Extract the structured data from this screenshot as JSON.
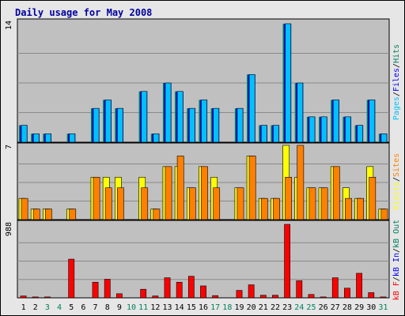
{
  "chart_data": {
    "type": "bar",
    "title": "Daily usage for May 2008",
    "x": [
      "1",
      "2",
      "3",
      "4",
      "5",
      "6",
      "7",
      "8",
      "9",
      "10",
      "11",
      "12",
      "13",
      "14",
      "15",
      "16",
      "17",
      "18",
      "19",
      "20",
      "21",
      "22",
      "23",
      "24",
      "25",
      "26",
      "27",
      "28",
      "29",
      "30",
      "31"
    ],
    "weekend_days": [
      "3",
      "4",
      "10",
      "11",
      "17",
      "18",
      "24",
      "25",
      "31"
    ],
    "panels": [
      {
        "id": "pages-files-hits",
        "max_label": "14",
        "ylim": [
          0,
          14
        ],
        "series": [
          {
            "name": "Hits",
            "color": "#00805c",
            "values": [
              2,
              1,
              1,
              0,
              1,
              0,
              4,
              5,
              4,
              0,
              6,
              1,
              7,
              6,
              4,
              5,
              4,
              0,
              4,
              8,
              2,
              2,
              14,
              7,
              3,
              3,
              5,
              3,
              2,
              5,
              1
            ]
          },
          {
            "name": "Files",
            "color": "#0000ff",
            "values": [
              2,
              1,
              1,
              0,
              1,
              0,
              4,
              5,
              4,
              0,
              6,
              1,
              7,
              6,
              4,
              5,
              4,
              0,
              4,
              8,
              2,
              2,
              14,
              7,
              3,
              3,
              5,
              3,
              2,
              5,
              1
            ]
          },
          {
            "name": "Pages",
            "color": "#00c0ff",
            "values": [
              2,
              1,
              1,
              0,
              1,
              0,
              4,
              5,
              4,
              0,
              6,
              1,
              7,
              6,
              4,
              5,
              4,
              0,
              4,
              8,
              2,
              2,
              14,
              7,
              3,
              3,
              5,
              3,
              2,
              5,
              1
            ]
          }
        ],
        "legend": [
          "Pages",
          "Files",
          "Hits"
        ]
      },
      {
        "id": "visits-sites",
        "max_label": "7",
        "ylim": [
          0,
          7
        ],
        "series": [
          {
            "name": "Visits",
            "color": "#ffff00",
            "values": [
              2,
              1,
              1,
              0,
              1,
              0,
              4,
              4,
              4,
              0,
              4,
              1,
              5,
              5,
              3,
              5,
              4,
              0,
              3,
              6,
              2,
              2,
              7,
              4,
              3,
              3,
              5,
              3,
              2,
              5,
              1
            ]
          },
          {
            "name": "Sites",
            "color": "#ff8000",
            "values": [
              2,
              1,
              1,
              0,
              1,
              0,
              4,
              3,
              3,
              0,
              3,
              1,
              5,
              6,
              3,
              5,
              3,
              0,
              3,
              6,
              2,
              2,
              4,
              7,
              3,
              3,
              5,
              2,
              2,
              4,
              1
            ]
          }
        ],
        "legend": [
          "Visits",
          "Sites"
        ]
      },
      {
        "id": "kbytes",
        "max_label": "988",
        "ylim": [
          0,
          988
        ],
        "series": [
          {
            "name": "kB F",
            "color": "#ff0000",
            "values": [
              25,
              12,
              12,
              0,
              520,
              0,
              210,
              250,
              55,
              0,
              115,
              25,
              270,
              210,
              290,
              160,
              30,
              0,
              100,
              175,
              35,
              35,
              988,
              230,
              45,
              12,
              270,
              130,
              330,
              70,
              12
            ]
          }
        ],
        "legend": [
          "kB F",
          "kB In",
          "kB Out"
        ]
      }
    ],
    "colors": {
      "pages": "#00c0ff",
      "files": "#0000ff",
      "hits": "#00805c",
      "visits": "#ffff00",
      "sites": "#ff8000",
      "kbf": "#ff0000",
      "kbin": "#0000ff",
      "kbout": "#00805c",
      "plot_bg": "#c0c0c0",
      "frame_bg": "#e6e6e6",
      "title": "#0000a0",
      "weekday_label": "#000000",
      "weekend_label": "#00805c"
    }
  }
}
